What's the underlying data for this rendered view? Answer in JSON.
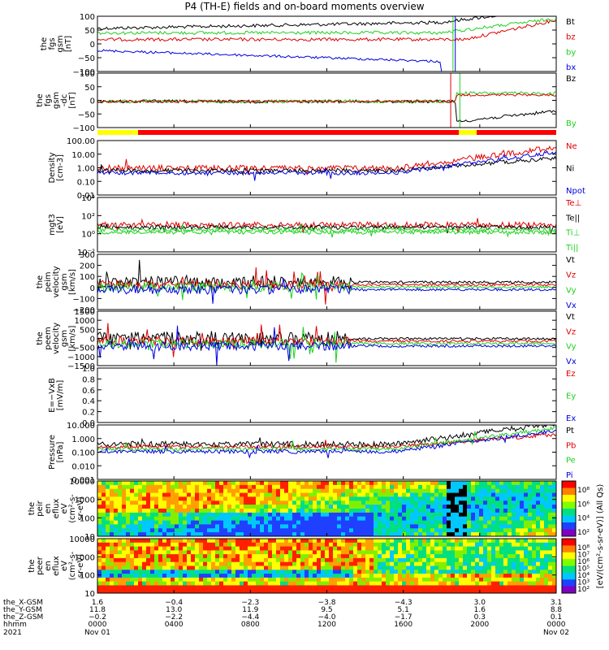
{
  "title": "P4 (TH-E) fields and on-board moments overview",
  "colors": {
    "black": "#000000",
    "red": "#e00000",
    "green": "#20d020",
    "blue": "#0000e0"
  },
  "chart_data": [
    {
      "type": "line",
      "name": "fgs-gsm",
      "ylabel_lines": [
        "the",
        "fgs",
        "gsm",
        "[nT]"
      ],
      "yticks": [
        "100",
        "50",
        "0",
        "−50",
        "−100"
      ],
      "legend": [
        {
          "label": "Bt",
          "color": "black"
        },
        {
          "label": "bz",
          "color": "red"
        },
        {
          "label": "by",
          "color": "green"
        },
        {
          "label": "bx",
          "color": "blue"
        }
      ]
    },
    {
      "type": "line",
      "name": "fgs-gsm-dc",
      "ylabel_lines": [
        "the",
        "fgs",
        "gsm",
        "-dc",
        "[nT]"
      ],
      "yticks": [
        "100",
        "50",
        "0",
        "−50",
        "−100"
      ],
      "legend": [
        {
          "label": "Bz",
          "color": "black"
        },
        {
          "label": "By",
          "color": "green"
        }
      ]
    },
    {
      "type": "line",
      "name": "density",
      "ylabel_lines": [
        "Density",
        "[cm-3]"
      ],
      "yticks": [
        "100.00",
        "10.00",
        "1.00",
        "0.10",
        "0.01"
      ],
      "legend": [
        {
          "label": "Ne",
          "color": "red"
        },
        {
          "label": "Ni",
          "color": "black"
        },
        {
          "label": "Npot",
          "color": "blue"
        }
      ]
    },
    {
      "type": "line",
      "name": "temperature",
      "ylabel_lines": [
        "mgt3",
        "[eV]"
      ],
      "yticks": [
        "10⁴",
        "10²",
        "10⁰",
        "10⁻²"
      ],
      "legend": [
        {
          "label": "Te⊥",
          "color": "red"
        },
        {
          "label": "Te||",
          "color": "black"
        },
        {
          "label": "Ti⊥",
          "color": "green"
        },
        {
          "label": "Ti||",
          "color": "green"
        }
      ]
    },
    {
      "type": "line",
      "name": "peim-velocity",
      "ylabel_lines": [
        "the",
        "peim",
        "velocity",
        "gsm",
        "[km/s]"
      ],
      "yticks": [
        "300",
        "200",
        "100",
        "0",
        "−100",
        "−200"
      ],
      "legend": [
        {
          "label": "Vt",
          "color": "black"
        },
        {
          "label": "Vz",
          "color": "red"
        },
        {
          "label": "Vy",
          "color": "green"
        },
        {
          "label": "Vx",
          "color": "blue"
        }
      ]
    },
    {
      "type": "line",
      "name": "peem-velocity",
      "ylabel_lines": [
        "the",
        "peem",
        "velocity",
        "gsm",
        "[km/s]"
      ],
      "yticks": [
        "1500",
        "1000",
        "500",
        "0",
        "−500",
        "−1000",
        "−1500"
      ],
      "legend": [
        {
          "label": "Vt",
          "color": "black"
        },
        {
          "label": "Vz",
          "color": "red"
        },
        {
          "label": "Vy",
          "color": "green"
        },
        {
          "label": "Vx",
          "color": "blue"
        }
      ]
    },
    {
      "type": "line",
      "name": "efield",
      "ylabel_lines": [
        "E=−VxB",
        "[mV/m]"
      ],
      "yticks": [
        "1.0",
        "0.8",
        "0.6",
        "0.4",
        "0.2",
        "0.0"
      ],
      "legend": [
        {
          "label": "Ez",
          "color": "red"
        },
        {
          "label": "Ey",
          "color": "green"
        },
        {
          "label": "Ex",
          "color": "blue"
        }
      ]
    },
    {
      "type": "line",
      "name": "pressure",
      "ylabel_lines": [
        "Pressure",
        "[nPa]"
      ],
      "yticks": [
        "10.000",
        "1.000",
        "0.100",
        "0.010",
        "0.001"
      ],
      "legend": [
        {
          "label": "Pt",
          "color": "black"
        },
        {
          "label": "Pb",
          "color": "red"
        },
        {
          "label": "Pe",
          "color": "green"
        },
        {
          "label": "Pi",
          "color": "blue"
        }
      ]
    },
    {
      "type": "heatmap",
      "name": "peir-eflux",
      "ylabel_lines": [
        "the",
        "peir",
        "en",
        "eflux",
        "eV",
        "(cm²-s-",
        "sr-eV)"
      ],
      "yticks": [
        "10000",
        "1000",
        "100",
        "10"
      ],
      "colorbar_ticks": [
        "10⁸",
        "10⁶",
        "10⁴",
        "10²"
      ]
    },
    {
      "type": "heatmap",
      "name": "peer-eflux",
      "ylabel_lines": [
        "the",
        "peer",
        "en",
        "eflux",
        "eV",
        "(cm²-s-",
        "sr-eV)"
      ],
      "yticks": [
        "10000",
        "1000",
        "100",
        "10"
      ],
      "colorbar_ticks": [
        "10⁸",
        "10⁷",
        "10⁶",
        "10⁵",
        "10⁴",
        "10³",
        "10²"
      ]
    }
  ],
  "colorbar_label": "[eV/(cm²-s-sr-eV)] (All Qs)",
  "colorbar_label2": "[eV/(cm²-s-str-eV)]",
  "xaxis": {
    "rows": [
      {
        "label": "the_X-GSM",
        "values": [
          "1.6",
          "−0.4",
          "−2.3",
          "−3.8",
          "−4.3",
          "3.0",
          "3.1"
        ]
      },
      {
        "label": "the_Y-GSM",
        "values": [
          "11.8",
          "13.0",
          "11.9",
          "9.5",
          "5.1",
          "1.6",
          "8.8"
        ]
      },
      {
        "label": "the_Z-GSM",
        "values": [
          "−0.2",
          "−2.2",
          "−4.4",
          "−4.0",
          "−1.7",
          "0.3",
          "0.1"
        ]
      },
      {
        "label": "hhmm",
        "values": [
          "0000",
          "0400",
          "0800",
          "1200",
          "1600",
          "2000",
          "0000"
        ]
      }
    ],
    "year": "2021",
    "dates": [
      "Nov 01",
      "Nov 02"
    ]
  }
}
